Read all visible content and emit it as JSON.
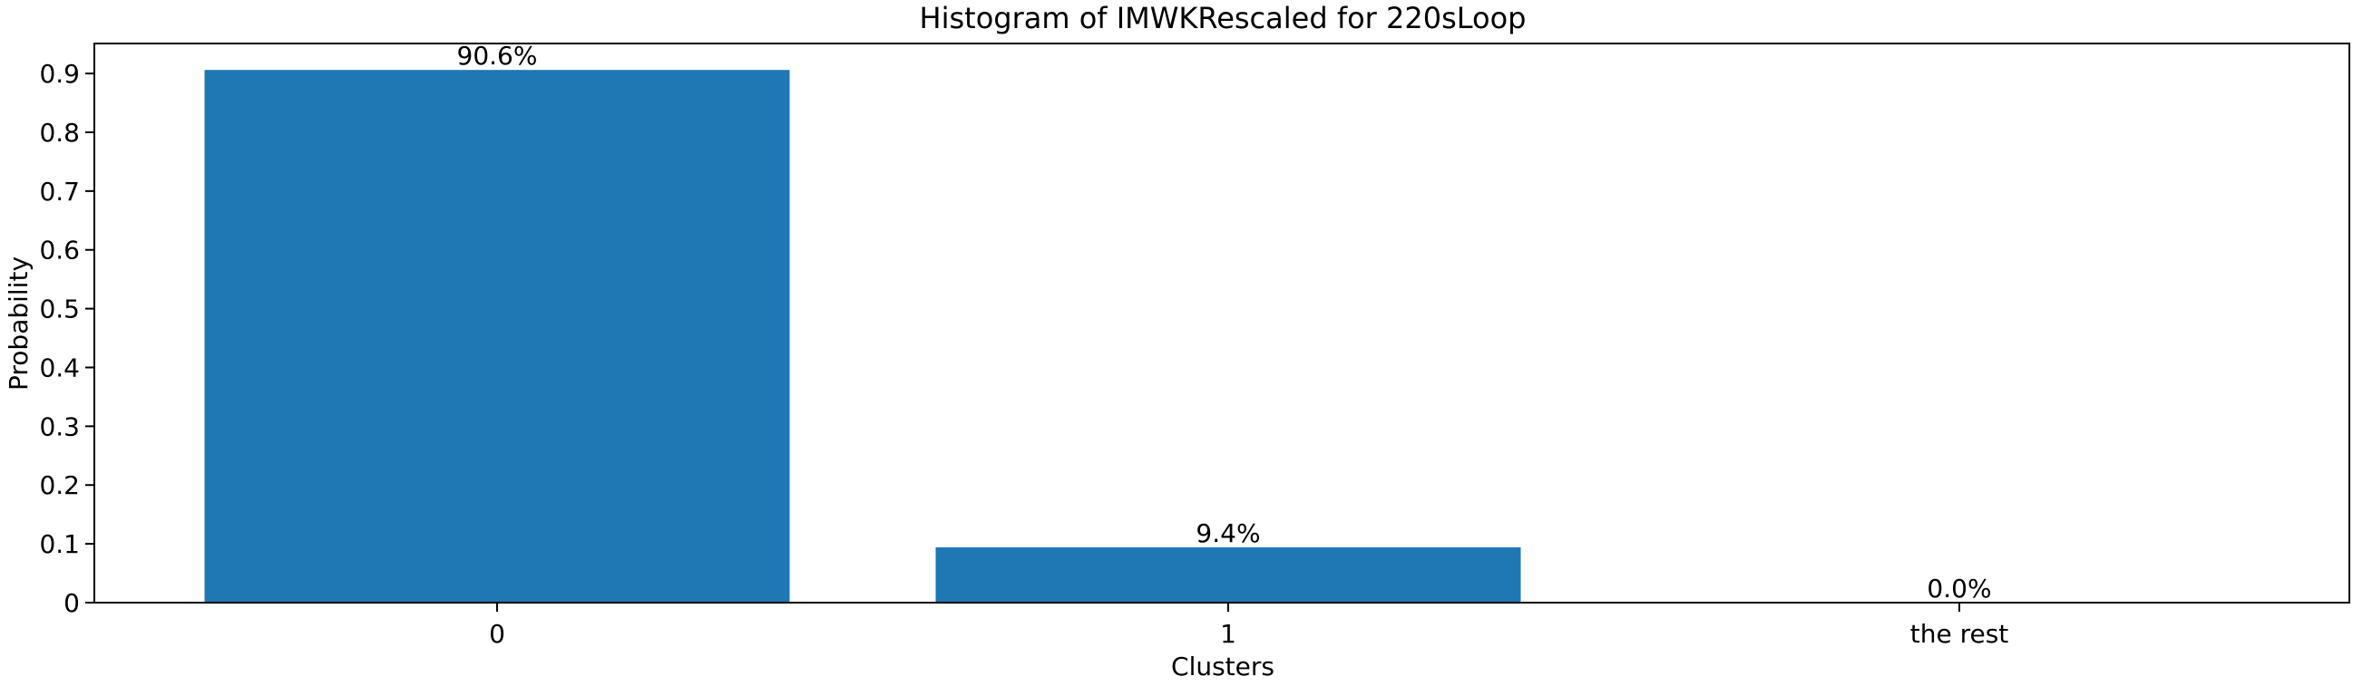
{
  "chart_data": {
    "type": "bar",
    "title": "Histogram of IMWKRescaled for 220sLoop",
    "xlabel": "Clusters",
    "ylabel": "Probability",
    "categories": [
      "0",
      "1",
      "the rest"
    ],
    "values": [
      0.906,
      0.094,
      0.0
    ],
    "data_labels": [
      "90.6%",
      "9.4%",
      "0.0%"
    ],
    "ylim": [
      0,
      0.951
    ],
    "yticks": [
      0,
      0.1,
      0.2,
      0.3,
      0.4,
      0.5,
      0.6,
      0.7,
      0.8,
      0.9
    ],
    "ytick_labels": [
      "0",
      "0.1",
      "0.2",
      "0.3",
      "0.4",
      "0.5",
      "0.6",
      "0.7",
      "0.8",
      "0.9"
    ],
    "bar_color": "#1f77b4",
    "grid": false,
    "legend": null
  }
}
